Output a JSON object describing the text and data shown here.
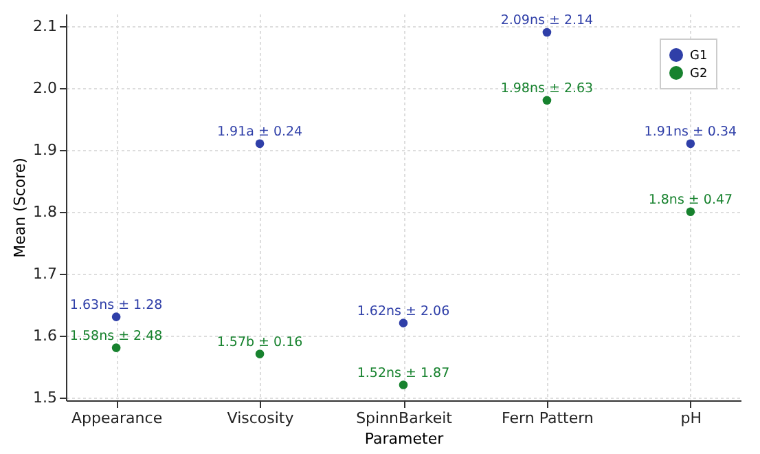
{
  "chart_data": {
    "type": "scatter",
    "xlabel": "Parameter",
    "ylabel": "Mean (Score)",
    "categories": [
      "Appearance",
      "Viscosity",
      "SpinnBarkeit",
      "Fern Pattern",
      "pH"
    ],
    "series": [
      {
        "name": "G1",
        "color": "#2f3fa8",
        "values": [
          1.63,
          1.91,
          1.62,
          2.09,
          1.91
        ],
        "value_labels": [
          "1.63ns ± 1.28",
          "1.91a ± 0.24",
          "1.62ns ± 2.06",
          "2.09ns ± 2.14",
          "1.91ns ± 0.34"
        ]
      },
      {
        "name": "G2",
        "color": "#17822e",
        "values": [
          1.58,
          1.57,
          1.52,
          1.98,
          1.8
        ],
        "value_labels": [
          "1.58ns ± 2.48",
          "1.57b ± 0.16",
          "1.52ns ± 1.87",
          "1.98ns ± 2.63",
          "1.8ns ± 0.47"
        ]
      }
    ],
    "ylim": [
      1.495,
      2.12
    ],
    "yticks": [
      1.5,
      1.6,
      1.7,
      1.8,
      1.9,
      {
        "value": 2,
        "label": "2.0"
      },
      2.1
    ],
    "grid": true,
    "legend": "top right",
    "marker": "circle"
  }
}
